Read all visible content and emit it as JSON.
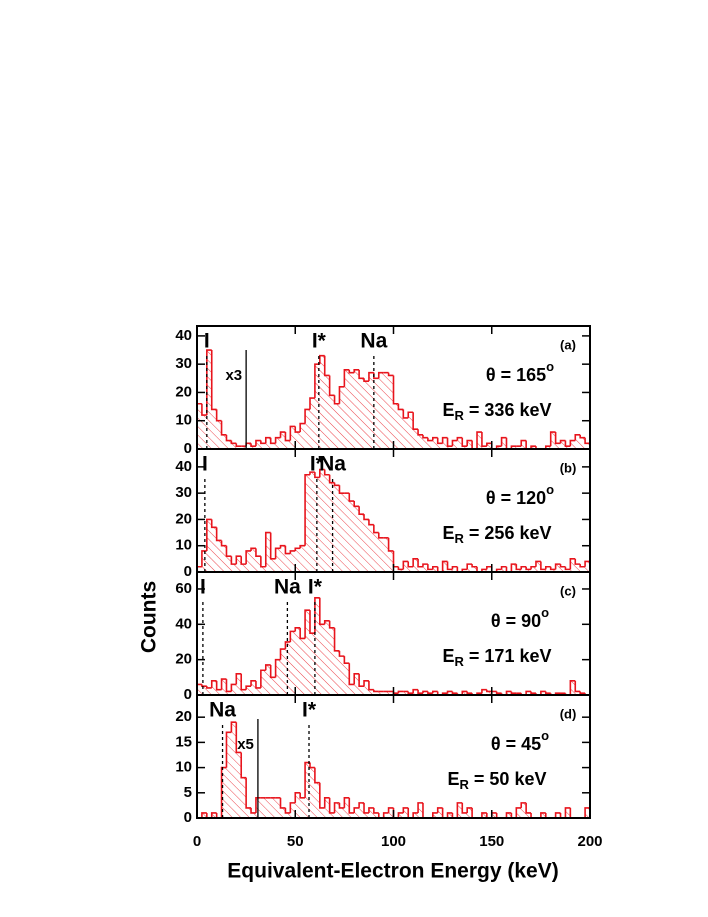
{
  "axes": {
    "xlabel": "Equivalent-Electron Energy (keV)",
    "ylabel": "Counts",
    "xlim": [
      0,
      200
    ],
    "xticks": [
      0,
      50,
      100,
      150,
      200
    ]
  },
  "chart_data": [
    {
      "type": "histogram",
      "panel": "(a)",
      "color": "#e8141c",
      "angle": {
        "text": "θ = 165",
        "sup": "o"
      },
      "energy": {
        "sym": "E",
        "sub": "R",
        "text": " = 336 keV"
      },
      "ylim": [
        0,
        43.5
      ],
      "yticks": [
        0,
        10,
        20,
        30,
        40
      ],
      "markers": [
        {
          "label": "I",
          "x": 5
        },
        {
          "label": "I*",
          "x": 62
        },
        {
          "label": "Na",
          "x": 90
        }
      ],
      "scale_line": {
        "label": "x3",
        "x": 25
      },
      "bins": [
        0,
        2.5,
        5,
        7.5,
        10,
        12.5,
        15,
        17.5,
        20,
        22.5,
        25,
        27.5,
        30,
        32.5,
        35,
        37.5,
        40,
        42.5,
        45,
        47.5,
        50,
        52.5,
        55,
        57.5,
        60,
        62.5,
        65,
        67.5,
        70,
        72.5,
        75,
        77.5,
        80,
        82.5,
        85,
        87.5,
        90,
        92.5,
        95,
        97.5,
        100,
        102.5,
        105,
        107.5,
        110,
        112.5,
        115,
        117.5,
        120,
        122.5,
        125,
        127.5,
        130,
        132.5,
        135,
        137.5,
        140,
        142.5,
        145,
        147.5,
        150,
        152.5,
        155,
        157.5,
        160,
        162.5,
        165,
        167.5,
        170,
        172.5,
        175,
        177.5,
        180,
        182.5,
        185,
        187.5,
        190,
        192.5,
        195,
        197.5,
        200
      ],
      "values": [
        16,
        12,
        35,
        14,
        10,
        5,
        3,
        2,
        1,
        1,
        2,
        1,
        3,
        2,
        4,
        2,
        4,
        6,
        3,
        8,
        6,
        9,
        14,
        18,
        30,
        33,
        26,
        19,
        16,
        22,
        28,
        27,
        28,
        25,
        24,
        27,
        25,
        27,
        27,
        26,
        16,
        14,
        11,
        13,
        7,
        5,
        4,
        3,
        4,
        2,
        4,
        1,
        3,
        4,
        1,
        3,
        0,
        6,
        1,
        2,
        0,
        1,
        4,
        0,
        1,
        1,
        3,
        0,
        1,
        0,
        0,
        1,
        6,
        2,
        3,
        1,
        3,
        5,
        4,
        2
      ]
    },
    {
      "type": "histogram",
      "panel": "(b)",
      "color": "#e8141c",
      "angle": {
        "text": "θ = 120",
        "sup": "o"
      },
      "energy": {
        "sym": "E",
        "sub": "R",
        "text": " = 256 keV"
      },
      "ylim": [
        0,
        46.8
      ],
      "yticks": [
        0,
        10,
        20,
        30,
        40
      ],
      "markers": [
        {
          "label": "I",
          "x": 4
        },
        {
          "label": "I*",
          "x": 61
        },
        {
          "label": "Na",
          "x": 69
        }
      ],
      "bins": [
        0,
        2.5,
        5,
        7.5,
        10,
        12.5,
        15,
        17.5,
        20,
        22.5,
        25,
        27.5,
        30,
        32.5,
        35,
        37.5,
        40,
        42.5,
        45,
        47.5,
        50,
        52.5,
        55,
        57.5,
        60,
        62.5,
        65,
        67.5,
        70,
        72.5,
        75,
        77.5,
        80,
        82.5,
        85,
        87.5,
        90,
        92.5,
        95,
        97.5,
        100,
        102.5,
        105,
        107.5,
        110,
        112.5,
        115,
        117.5,
        120,
        122.5,
        125,
        127.5,
        130,
        132.5,
        135,
        137.5,
        140,
        142.5,
        145,
        147.5,
        150,
        152.5,
        155,
        157.5,
        160,
        162.5,
        165,
        167.5,
        170,
        172.5,
        175,
        177.5,
        180,
        182.5,
        185,
        187.5,
        190,
        192.5,
        195,
        197.5,
        200
      ],
      "values": [
        2,
        8,
        20,
        17,
        12,
        10,
        6,
        3,
        6,
        3,
        8,
        9,
        6,
        2,
        15,
        5,
        9,
        10,
        7,
        8,
        9,
        10,
        37,
        38,
        36,
        39,
        37,
        34,
        33,
        30,
        30,
        27,
        25,
        22,
        20,
        18,
        15,
        13,
        13,
        8,
        2,
        1,
        4,
        2,
        5,
        2,
        3,
        1,
        2,
        0,
        4,
        1,
        2,
        0,
        1,
        3,
        2,
        0,
        1,
        2,
        0,
        1,
        2,
        0,
        3,
        1,
        2,
        1,
        2,
        4,
        1,
        2,
        1,
        3,
        2,
        1,
        5,
        3,
        2,
        4
      ]
    },
    {
      "type": "histogram",
      "panel": "(c)",
      "color": "#e8141c",
      "angle": {
        "text": "θ = 90",
        "sup": "o"
      },
      "energy": {
        "sym": "E",
        "sub": "R",
        "text": " = 171 keV"
      },
      "ylim": [
        0,
        69.6
      ],
      "yticks": [
        0,
        20,
        40,
        60
      ],
      "markers": [
        {
          "label": "I",
          "x": 3
        },
        {
          "label": "Na",
          "x": 46
        },
        {
          "label": "I*",
          "x": 60
        }
      ],
      "bins": [
        0,
        2.5,
        5,
        7.5,
        10,
        12.5,
        15,
        17.5,
        20,
        22.5,
        25,
        27.5,
        30,
        32.5,
        35,
        37.5,
        40,
        42.5,
        45,
        47.5,
        50,
        52.5,
        55,
        57.5,
        60,
        62.5,
        65,
        67.5,
        70,
        72.5,
        75,
        77.5,
        80,
        82.5,
        85,
        87.5,
        90,
        92.5,
        95,
        97.5,
        100,
        102.5,
        105,
        107.5,
        110,
        112.5,
        115,
        117.5,
        120,
        122.5,
        125,
        127.5,
        130,
        132.5,
        135,
        137.5,
        140,
        142.5,
        145,
        147.5,
        150,
        152.5,
        155,
        157.5,
        160,
        162.5,
        165,
        167.5,
        170,
        172.5,
        175,
        177.5,
        180,
        182.5,
        185,
        187.5,
        190,
        192.5,
        195,
        197.5,
        200
      ],
      "values": [
        6,
        5,
        4,
        8,
        3,
        9,
        2,
        6,
        12,
        3,
        5,
        8,
        4,
        14,
        17,
        10,
        20,
        26,
        30,
        36,
        38,
        32,
        48,
        35,
        55,
        40,
        42,
        38,
        25,
        22,
        18,
        6,
        12,
        5,
        8,
        3,
        2,
        2,
        2,
        2,
        1,
        2,
        2,
        1,
        3,
        1,
        2,
        1,
        2,
        0,
        1,
        2,
        1,
        0,
        2,
        1,
        0,
        1,
        3,
        2,
        2,
        1,
        0,
        2,
        1,
        1,
        0,
        2,
        1,
        0,
        2,
        1,
        0,
        1,
        1,
        0,
        8,
        2,
        1,
        0
      ]
    },
    {
      "type": "histogram",
      "panel": "(d)",
      "color": "#e8141c",
      "angle": {
        "text": "θ = 45",
        "sup": "o"
      },
      "energy": {
        "sym": "E",
        "sub": "R",
        "text": " = 50 keV"
      },
      "ylim": [
        0,
        24.4
      ],
      "yticks": [
        0,
        5,
        10,
        15,
        20
      ],
      "markers": [
        {
          "label": "Na",
          "x": 13
        },
        {
          "label": "I*",
          "x": 57
        }
      ],
      "scale_line": {
        "label": "x5",
        "x": 31
      },
      "bins": [
        0,
        2.5,
        5,
        7.5,
        10,
        12.5,
        15,
        17.5,
        20,
        22.5,
        25,
        27.5,
        30,
        32.5,
        35,
        37.5,
        40,
        42.5,
        45,
        47.5,
        50,
        52.5,
        55,
        57.5,
        60,
        62.5,
        65,
        67.5,
        70,
        72.5,
        75,
        77.5,
        80,
        82.5,
        85,
        87.5,
        90,
        92.5,
        95,
        97.5,
        100,
        102.5,
        105,
        107.5,
        110,
        112.5,
        115,
        117.5,
        120,
        122.5,
        125,
        127.5,
        130,
        132.5,
        135,
        137.5,
        140,
        142.5,
        145,
        147.5,
        150,
        152.5,
        155,
        157.5,
        160,
        162.5,
        165,
        167.5,
        170,
        172.5,
        175,
        177.5,
        180,
        182.5,
        185,
        187.5,
        190,
        192.5,
        195,
        197.5,
        200
      ],
      "values": [
        0,
        1,
        0,
        1,
        0,
        10,
        17,
        19,
        13,
        8,
        2,
        1,
        4,
        4,
        4,
        4,
        4,
        2,
        1,
        3,
        5,
        4,
        11,
        10,
        7,
        2,
        4,
        1,
        3,
        2,
        4,
        1,
        2,
        3,
        1,
        2,
        1,
        0,
        1,
        2,
        0,
        1,
        2,
        0,
        1,
        3,
        0,
        0,
        1,
        2,
        0,
        1,
        0,
        3,
        1,
        2,
        0,
        0,
        1,
        0,
        1,
        0,
        0,
        1,
        0,
        2,
        3,
        1,
        0,
        0,
        1,
        0,
        0,
        1,
        0,
        2,
        0,
        0,
        0,
        2
      ]
    }
  ]
}
